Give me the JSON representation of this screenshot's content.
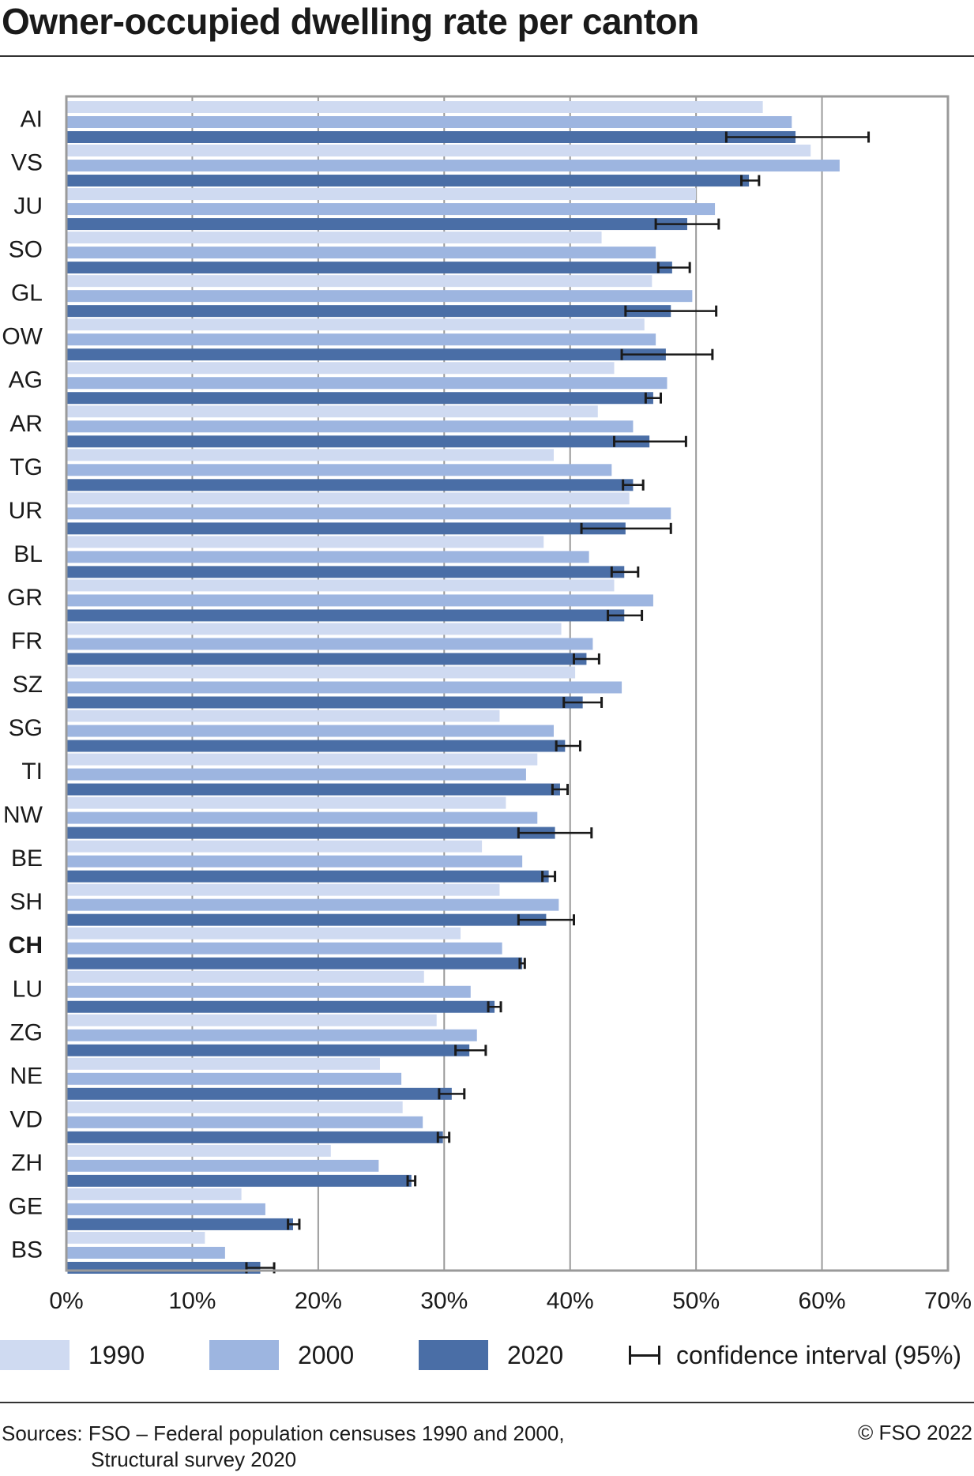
{
  "title": "Owner-occupied dwelling rate per canton",
  "chart_data": {
    "type": "bar",
    "orientation": "horizontal",
    "categories": [
      "AI",
      "VS",
      "JU",
      "SO",
      "GL",
      "OW",
      "AG",
      "AR",
      "TG",
      "UR",
      "BL",
      "GR",
      "FR",
      "SZ",
      "SG",
      "TI",
      "NW",
      "BE",
      "SH",
      "CH",
      "LU",
      "ZG",
      "NE",
      "VD",
      "ZH",
      "GE",
      "BS"
    ],
    "highlight_category": "CH",
    "series": [
      {
        "name": "1990",
        "color": "#cfdaf1",
        "values": [
          55.3,
          59.1,
          50.0,
          42.5,
          46.5,
          45.9,
          43.5,
          42.2,
          38.7,
          44.7,
          37.9,
          43.5,
          39.3,
          40.4,
          34.4,
          37.4,
          34.9,
          33.0,
          34.4,
          31.3,
          28.4,
          29.4,
          24.9,
          26.7,
          21.0,
          13.9,
          11.0
        ]
      },
      {
        "name": "2000",
        "color": "#9db5e0",
        "values": [
          57.6,
          61.4,
          51.5,
          46.8,
          49.7,
          46.8,
          47.7,
          45.0,
          43.3,
          48.0,
          41.5,
          46.6,
          41.8,
          44.1,
          38.7,
          36.5,
          37.4,
          36.2,
          39.1,
          34.6,
          32.1,
          32.6,
          26.6,
          28.3,
          24.8,
          15.8,
          12.6
        ]
      },
      {
        "name": "2020",
        "color": "#4a6ea6",
        "values": [
          57.9,
          54.2,
          49.3,
          48.1,
          48.0,
          47.6,
          46.6,
          46.3,
          45.0,
          44.4,
          44.3,
          44.3,
          41.3,
          41.0,
          39.6,
          39.2,
          38.8,
          38.3,
          38.1,
          36.2,
          34.0,
          32.0,
          30.6,
          29.9,
          27.4,
          18.0,
          15.4
        ]
      }
    ],
    "confidence_interval_2020": [
      [
        52.4,
        63.7
      ],
      [
        53.6,
        55.0
      ],
      [
        46.8,
        51.8
      ],
      [
        47.0,
        49.5
      ],
      [
        44.4,
        51.6
      ],
      [
        44.1,
        51.3
      ],
      [
        46.0,
        47.2
      ],
      [
        43.5,
        49.2
      ],
      [
        44.2,
        45.8
      ],
      [
        40.9,
        48.0
      ],
      [
        43.3,
        45.4
      ],
      [
        43.0,
        45.7
      ],
      [
        40.3,
        42.3
      ],
      [
        39.5,
        42.5
      ],
      [
        38.9,
        40.8
      ],
      [
        38.6,
        39.8
      ],
      [
        35.9,
        41.7
      ],
      [
        37.8,
        38.8
      ],
      [
        35.9,
        40.3
      ],
      [
        36.0,
        36.4
      ],
      [
        33.5,
        34.5
      ],
      [
        30.9,
        33.3
      ],
      [
        29.6,
        31.6
      ],
      [
        29.5,
        30.4
      ],
      [
        27.1,
        27.7
      ],
      [
        17.6,
        18.5
      ],
      [
        14.3,
        16.5
      ]
    ],
    "xlim": [
      0,
      70
    ],
    "x_ticks": [
      "0%",
      "10%",
      "20%",
      "30%",
      "40%",
      "50%",
      "60%",
      "70%"
    ],
    "grid": true,
    "legend_position": "bottom"
  },
  "legend": {
    "items": [
      {
        "label": "1990",
        "color": "#cfdaf1"
      },
      {
        "label": "2000",
        "color": "#9db5e0"
      },
      {
        "label": "2020",
        "color": "#4a6ea6"
      }
    ],
    "ci_label": "confidence interval (95%)"
  },
  "footer": {
    "source_line1": "Sources: FSO – Federal population censuses 1990 and 2000,",
    "source_line2": "Structural survey 2020",
    "copyright": "© FSO 2022"
  }
}
